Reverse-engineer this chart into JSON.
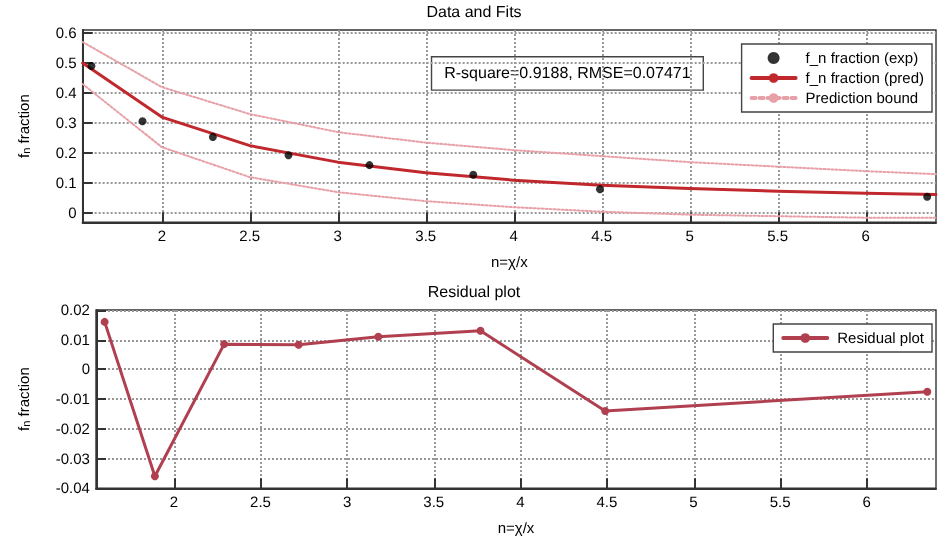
{
  "chart_data": [
    {
      "type": "line",
      "title": "Data and Fits",
      "xlabel": "n=χ/x",
      "ylabel": "f$_{n}$ fraction",
      "xlim": [
        1.55,
        6.4
      ],
      "xticks": [
        2,
        2.5,
        3,
        3.5,
        4,
        4.5,
        5,
        5.5,
        6
      ],
      "ylim": [
        -0.03,
        0.61
      ],
      "yticks": [
        0,
        0.1,
        0.2,
        0.3,
        0.4,
        0.5,
        0.6
      ],
      "grid": true,
      "legend": "top right",
      "annotations": [
        "R-square=0.9188, RMSE=0.07471"
      ],
      "series": [
        {
          "name": "f_n fraction (exp)",
          "type": "scatter",
          "marker": "circle",
          "color": "#000000",
          "x": [
            1.6,
            1.89,
            2.29,
            2.72,
            3.18,
            3.77,
            4.49,
            6.35
          ],
          "values": [
            0.49,
            0.306,
            0.254,
            0.193,
            0.16,
            0.128,
            0.08,
            0.055
          ]
        },
        {
          "name": "f_n fraction (pred)",
          "type": "line",
          "marker": "none",
          "line_style": "solid",
          "color": "#c0282d",
          "x": [
            1.55,
            2,
            2.5,
            3,
            3.5,
            4,
            4.5,
            5,
            5.5,
            6,
            6.4
          ],
          "values": [
            0.5,
            0.32,
            0.225,
            0.17,
            0.135,
            0.11,
            0.093,
            0.082,
            0.073,
            0.066,
            0.062
          ]
        },
        {
          "name": "Prediction bound",
          "type": "line",
          "marker": "none",
          "line_style": "dotted",
          "color": "#e8a0a8",
          "x": [
            1.55,
            2,
            2.5,
            3,
            3.5,
            4,
            4.5,
            5,
            5.5,
            6,
            6.4
          ],
          "values": [
            0.57,
            0.42,
            0.33,
            0.27,
            0.235,
            0.21,
            0.19,
            0.17,
            0.155,
            0.14,
            0.13
          ]
        },
        {
          "type": "line",
          "marker": "none",
          "line_style": "dotted",
          "color": "#e8a0a8",
          "x": [
            1.55,
            2,
            2.5,
            3,
            3.5,
            4,
            4.5,
            5,
            5.5,
            6,
            6.4
          ],
          "values": [
            0.43,
            0.22,
            0.12,
            0.07,
            0.04,
            0.02,
            0.005,
            -0.005,
            -0.01,
            -0.015,
            -0.015
          ]
        }
      ]
    },
    {
      "type": "line",
      "title": "Residual plot",
      "xlabel": "n=χ/x",
      "ylabel": "f$_{n}$ fraction",
      "xlim": [
        1.55,
        6.4
      ],
      "xticks": [
        2,
        2.5,
        3,
        3.5,
        4,
        4.5,
        5,
        5.5,
        6
      ],
      "ylim": [
        -0.04,
        0.02
      ],
      "yticks": [
        -0.04,
        -0.03,
        -0.02,
        -0.01,
        0,
        0.01,
        0.02
      ],
      "grid": true,
      "legend": "top right",
      "series": [
        {
          "name": "Residual plot",
          "type": "line",
          "marker": "circle",
          "line_style": "solid",
          "color": "#b04050",
          "x": [
            1.6,
            1.89,
            2.29,
            2.72,
            3.18,
            3.77,
            4.49,
            6.35
          ],
          "values": [
            0.016,
            -0.036,
            0.0085,
            0.0083,
            0.011,
            0.013,
            -0.014,
            -0.0075
          ]
        }
      ]
    }
  ]
}
